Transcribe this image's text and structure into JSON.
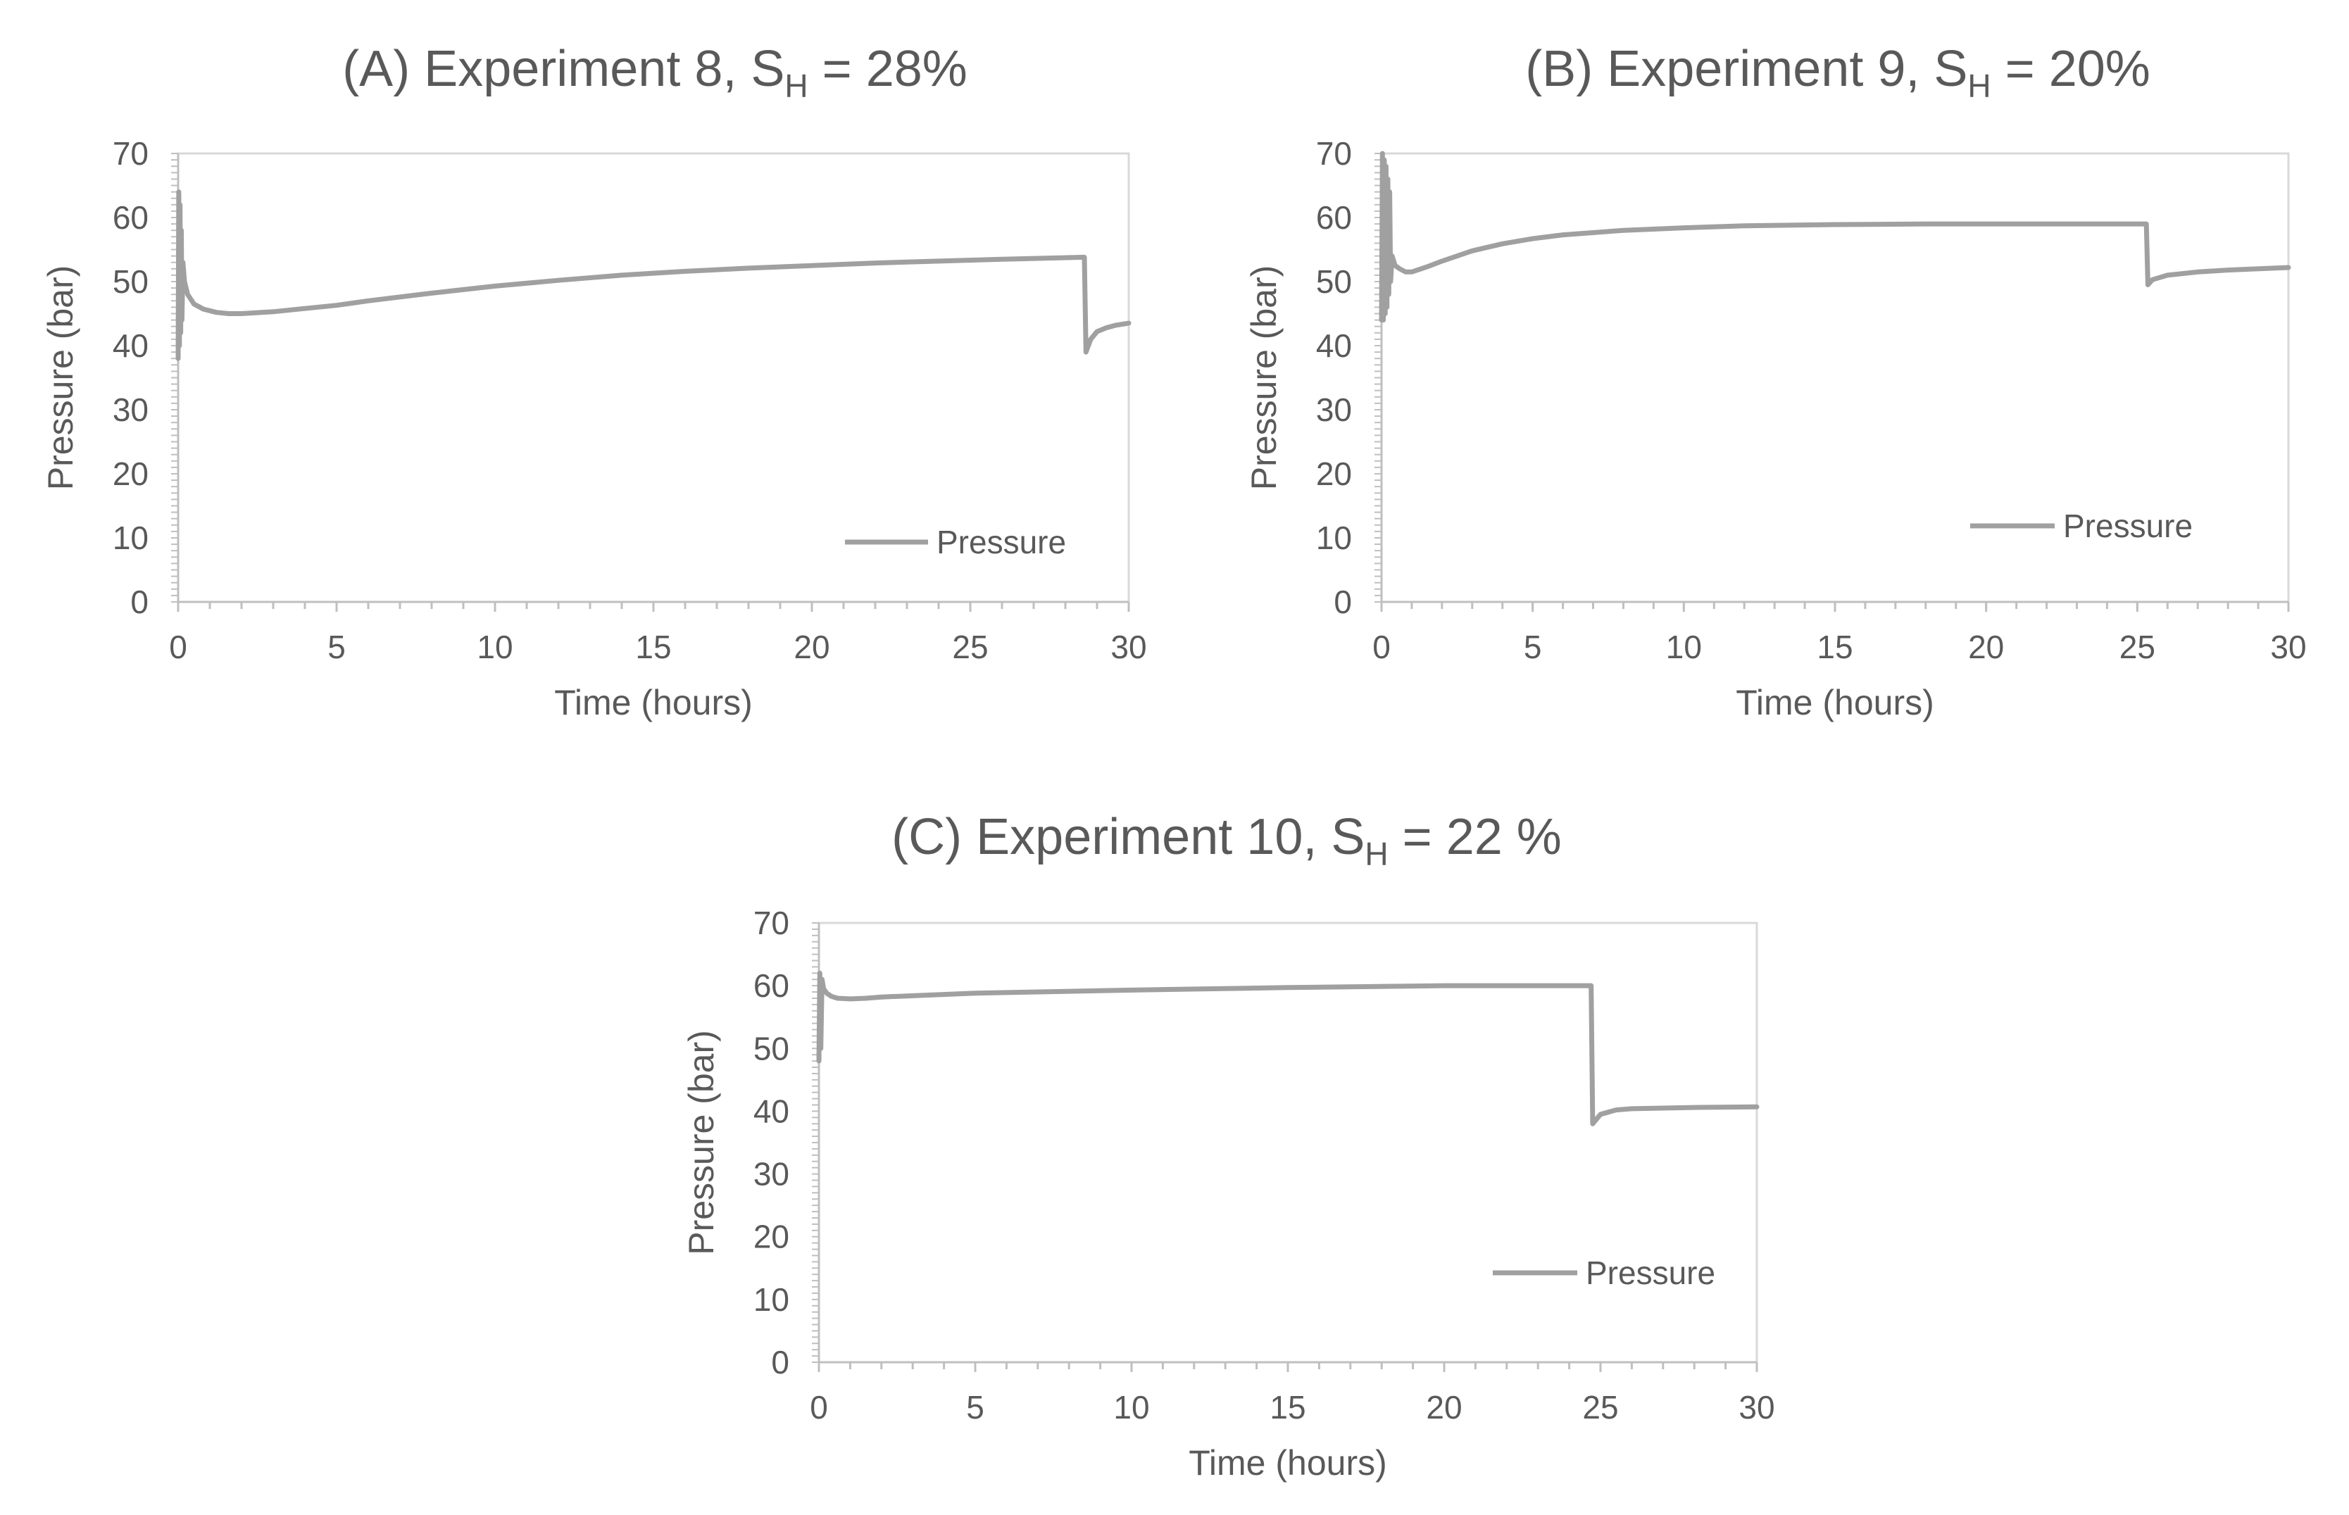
{
  "chart_data": [
    {
      "type": "line",
      "title": {
        "prefix": "(A) Experiment 8, S",
        "subscript": "H",
        "suffix": " = 28%"
      },
      "xlabel": "Time (hours)",
      "ylabel": "Pressure (bar)",
      "xlim": [
        0,
        30
      ],
      "ylim": [
        0,
        70
      ],
      "xticks": [
        0,
        5,
        10,
        15,
        20,
        25,
        30
      ],
      "yticks": [
        0,
        10,
        20,
        30,
        40,
        50,
        60,
        70
      ],
      "grid": false,
      "legend_position": "bottom-right",
      "series": [
        {
          "name": "Pressure",
          "color": "#a0a0a0",
          "x": [
            0,
            0.02,
            0.04,
            0.06,
            0.08,
            0.1,
            0.12,
            0.15,
            0.2,
            0.3,
            0.5,
            0.8,
            1.2,
            1.6,
            2,
            3,
            4,
            5,
            6,
            8,
            10,
            12,
            14,
            16,
            18,
            20,
            22,
            24,
            26,
            28.6,
            28.65,
            28.8,
            29,
            29.3,
            29.6,
            30
          ],
          "values": [
            38,
            64,
            40,
            62,
            42,
            58,
            44,
            53,
            50,
            48,
            46.5,
            45.7,
            45.2,
            45.0,
            45.0,
            45.3,
            45.8,
            46.3,
            47.0,
            48.2,
            49.3,
            50.2,
            51.0,
            51.6,
            52.1,
            52.5,
            52.9,
            53.2,
            53.5,
            53.8,
            39,
            41,
            42.2,
            42.8,
            43.2,
            43.5
          ]
        }
      ]
    },
    {
      "type": "line",
      "title": {
        "prefix": "(B) Experiment 9, S",
        "subscript": "H",
        "suffix": " = 20%"
      },
      "xlabel": "Time (hours)",
      "ylabel": "Pressure (bar)",
      "xlim": [
        0,
        30
      ],
      "ylim": [
        0,
        70
      ],
      "xticks": [
        0,
        5,
        10,
        15,
        20,
        25,
        30
      ],
      "yticks": [
        0,
        10,
        20,
        30,
        40,
        50,
        60,
        70
      ],
      "grid": false,
      "legend_position": "bottom-right",
      "series": [
        {
          "name": "Pressure",
          "color": "#a0a0a0",
          "x": [
            0,
            0.03,
            0.06,
            0.09,
            0.12,
            0.15,
            0.18,
            0.21,
            0.24,
            0.27,
            0.3,
            0.35,
            0.45,
            0.6,
            0.8,
            1,
            1.5,
            2,
            3,
            4,
            5,
            6,
            8,
            10,
            12,
            15,
            18,
            20,
            22,
            24,
            25.3,
            25.35,
            25.5,
            26,
            27,
            28,
            30
          ],
          "values": [
            44,
            70,
            44,
            69,
            45,
            68,
            46,
            66,
            48,
            64,
            50,
            54,
            52.5,
            52,
            51.5,
            51.5,
            52.3,
            53.2,
            54.8,
            55.9,
            56.7,
            57.3,
            58.0,
            58.4,
            58.7,
            58.9,
            59.0,
            59.0,
            59.0,
            59.0,
            59.0,
            49.5,
            50.3,
            51.0,
            51.5,
            51.8,
            52.2
          ]
        }
      ]
    },
    {
      "type": "line",
      "title": {
        "prefix": "(C) Experiment 10, S",
        "subscript": "H",
        "suffix": " = 22 %"
      },
      "xlabel": "Time (hours)",
      "ylabel": "Pressure (bar)",
      "xlim": [
        0,
        30
      ],
      "ylim": [
        0,
        70
      ],
      "xticks": [
        0,
        5,
        10,
        15,
        20,
        25,
        30
      ],
      "yticks": [
        0,
        10,
        20,
        30,
        40,
        50,
        60,
        70
      ],
      "grid": false,
      "legend_position": "bottom-right",
      "series": [
        {
          "name": "Pressure",
          "color": "#a0a0a0",
          "x": [
            0,
            0.03,
            0.06,
            0.1,
            0.15,
            0.25,
            0.4,
            0.6,
            1,
            1.5,
            2,
            5,
            10,
            15,
            20,
            24.7,
            24.75,
            25,
            25.5,
            26,
            28,
            30
          ],
          "values": [
            48,
            62,
            50,
            61,
            59.5,
            58.8,
            58.3,
            58.0,
            57.9,
            58.0,
            58.2,
            58.8,
            59.3,
            59.7,
            60.0,
            60.0,
            38,
            39.5,
            40.2,
            40.4,
            40.6,
            40.7
          ]
        }
      ]
    }
  ]
}
